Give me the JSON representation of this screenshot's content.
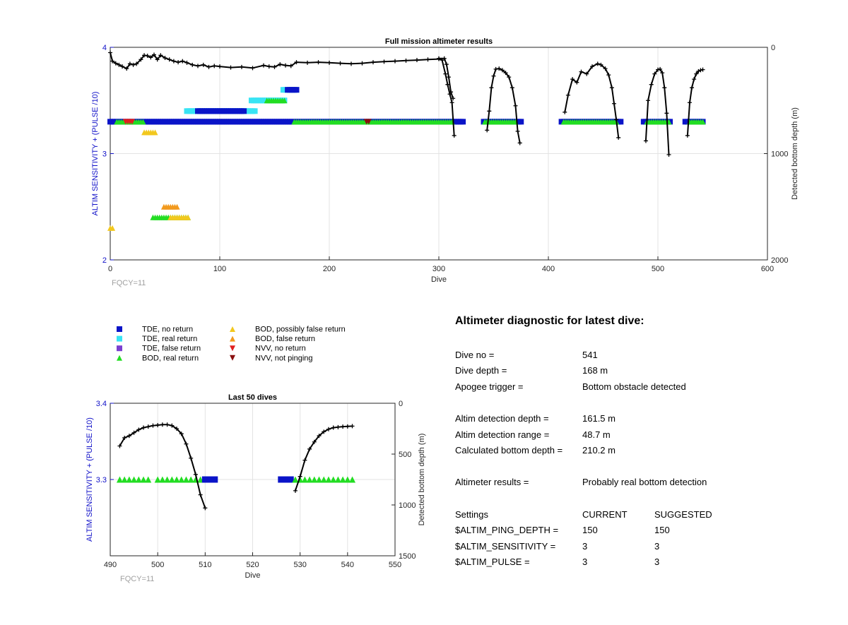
{
  "colors": {
    "tde_no_return": "#0a14c8",
    "tde_real_return": "#38e4f4",
    "tde_false_return": "#7a3fd0",
    "bod_real_return": "#22dd22",
    "bod_possibly_false": "#f2c81e",
    "bod_false": "#f29a1e",
    "nvv_no_return": "#e02020",
    "nvv_not_pinging": "#8a1010",
    "axis_left": "#1010c8",
    "depth_line": "#000000",
    "fqcy": "#a0a0a0"
  },
  "legend": [
    {
      "label": "TDE, no return",
      "marker": "square",
      "color_key": "tde_no_return"
    },
    {
      "label": "TDE, real return",
      "marker": "square",
      "color_key": "tde_real_return"
    },
    {
      "label": "TDE, false return",
      "marker": "square",
      "color_key": "tde_false_return"
    },
    {
      "label": "BOD, real return",
      "marker": "triangle-up",
      "color_key": "bod_real_return"
    },
    {
      "label": "BOD, possibly false return",
      "marker": "triangle-up",
      "color_key": "bod_possibly_false"
    },
    {
      "label": "BOD, false return",
      "marker": "triangle-up",
      "color_key": "bod_false"
    },
    {
      "label": "NVV, no return",
      "marker": "triangle-down",
      "color_key": "nvv_no_return"
    },
    {
      "label": "NVV, not pinging",
      "marker": "triangle-down",
      "color_key": "nvv_not_pinging"
    }
  ],
  "chart_data": [
    {
      "type": "scatter",
      "title": "Full mission altimeter results",
      "xlabel": "Dive",
      "ylabel": "ALTIM SENSITIVITY + (PULSE /10)",
      "y2label": "Detected bottom depth (m)",
      "xlim": [
        0,
        600
      ],
      "ylim": [
        2,
        4
      ],
      "y2lim": [
        0,
        2000
      ],
      "y2_reversed": true,
      "xticks": [
        "0",
        "100",
        "200",
        "300",
        "400",
        "500",
        "600"
      ],
      "yticks": [
        "2",
        "3",
        "4"
      ],
      "y2ticks": [
        "0",
        "1000",
        "2000"
      ],
      "grid": true,
      "annotation": "FQCY=11",
      "marker_runs": [
        {
          "class": "tde_no_return",
          "y": 3.3,
          "x_from": 0,
          "x_to": 322
        },
        {
          "class": "bod_real_return",
          "y": 3.3,
          "x_from": 6,
          "x_to": 31
        },
        {
          "class": "nvv_no_return",
          "y": 3.3,
          "x_from": 14,
          "x_to": 20
        },
        {
          "class": "bod_possibly_false",
          "y": 3.2,
          "x_from": 31,
          "x_to": 41
        },
        {
          "class": "tde_real_return",
          "y": 3.4,
          "x_from": 70,
          "x_to": 132
        },
        {
          "class": "tde_no_return",
          "y": 3.4,
          "x_from": 80,
          "x_to": 122
        },
        {
          "class": "tde_real_return",
          "y": 3.5,
          "x_from": 129,
          "x_to": 160
        },
        {
          "class": "bod_real_return",
          "y": 3.5,
          "x_from": 143,
          "x_to": 160
        },
        {
          "class": "tde_real_return",
          "y": 3.6,
          "x_from": 158,
          "x_to": 171
        },
        {
          "class": "tde_no_return",
          "y": 3.6,
          "x_from": 162,
          "x_to": 171
        },
        {
          "class": "bod_real_return",
          "y": 3.3,
          "x_from": 168,
          "x_to": 313
        },
        {
          "class": "nvv_not_pinging",
          "y": 3.3,
          "x_from": 234,
          "x_to": 236
        },
        {
          "class": "tde_no_return",
          "y": 3.3,
          "x_from": 341,
          "x_to": 375
        },
        {
          "class": "bod_real_return",
          "y": 3.3,
          "x_from": 342,
          "x_to": 371
        },
        {
          "class": "tde_no_return",
          "y": 3.3,
          "x_from": 412,
          "x_to": 466
        },
        {
          "class": "bod_real_return",
          "y": 3.3,
          "x_from": 414,
          "x_to": 462
        },
        {
          "class": "tde_no_return",
          "y": 3.3,
          "x_from": 487,
          "x_to": 512
        },
        {
          "class": "bod_real_return",
          "y": 3.3,
          "x_from": 490,
          "x_to": 510
        },
        {
          "class": "tde_no_return",
          "y": 3.3,
          "x_from": 525,
          "x_to": 541
        },
        {
          "class": "bod_real_return",
          "y": 3.3,
          "x_from": 529,
          "x_to": 541
        },
        {
          "class": "bod_real_return",
          "y": 2.4,
          "x_from": 39,
          "x_to": 71
        },
        {
          "class": "bod_possibly_false",
          "y": 2.4,
          "x_from": 55,
          "x_to": 72
        },
        {
          "class": "bod_false",
          "y": 2.5,
          "x_from": 49,
          "x_to": 61
        },
        {
          "class": "bod_possibly_false",
          "y": 2.3,
          "x_from": 0,
          "x_to": 3
        }
      ],
      "depth_segments": [
        {
          "x": [
            0,
            2,
            5,
            8,
            11,
            15,
            18,
            21,
            24,
            28,
            31,
            34,
            37,
            40,
            43,
            46,
            50,
            54,
            58,
            62,
            66,
            70,
            75,
            80,
            85,
            90,
            95,
            100,
            110,
            120,
            130,
            140,
            145,
            150,
            155,
            160,
            165,
            170,
            180,
            190,
            200,
            210,
            220,
            230,
            240,
            250,
            260,
            270,
            280,
            290,
            300,
            303,
            306,
            308,
            310,
            312,
            314
          ],
          "y": [
            50,
            130,
            150,
            165,
            180,
            200,
            155,
            165,
            155,
            115,
            75,
            80,
            95,
            70,
            115,
            75,
            100,
            115,
            130,
            140,
            130,
            145,
            165,
            175,
            165,
            185,
            175,
            180,
            190,
            185,
            195,
            170,
            180,
            185,
            160,
            170,
            175,
            140,
            145,
            140,
            145,
            150,
            155,
            150,
            140,
            135,
            130,
            125,
            120,
            115,
            110,
            120,
            250,
            350,
            440,
            520,
            830
          ]
        },
        {
          "x": [
            300,
            305,
            307,
            309,
            311,
            313
          ],
          "y": [
            105,
            105,
            160,
            280,
            420,
            480
          ]
        },
        {
          "x": [
            344,
            346,
            348,
            350,
            352,
            355,
            358,
            361,
            364,
            367,
            370,
            372,
            374
          ],
          "y": [
            780,
            600,
            380,
            270,
            205,
            200,
            215,
            240,
            280,
            380,
            550,
            790,
            900
          ]
        },
        {
          "x": [
            415,
            418,
            422,
            426,
            430,
            435,
            440,
            445,
            448,
            452,
            455,
            458,
            460,
            462,
            464
          ],
          "y": [
            610,
            450,
            300,
            330,
            230,
            250,
            180,
            155,
            165,
            200,
            260,
            380,
            530,
            680,
            850
          ]
        },
        {
          "x": [
            489,
            491,
            494,
            497,
            500,
            502,
            504,
            506,
            508,
            510
          ],
          "y": [
            880,
            500,
            350,
            250,
            210,
            205,
            240,
            380,
            620,
            1010
          ]
        },
        {
          "x": [
            527,
            529,
            531,
            533,
            535,
            537,
            539,
            541
          ],
          "y": [
            830,
            520,
            380,
            300,
            250,
            225,
            215,
            210
          ]
        }
      ]
    },
    {
      "type": "scatter",
      "title": "Last 50 dives",
      "xlabel": "Dive",
      "ylabel": "ALTIM SENSITIVITY + (PULSE /10)",
      "y2label": "Detected bottom depth (m)",
      "xlim": [
        490,
        550
      ],
      "ylim": [
        3.2,
        3.4
      ],
      "y2lim": [
        0,
        1500
      ],
      "y2_reversed": true,
      "xticks": [
        "490",
        "500",
        "510",
        "520",
        "530",
        "540",
        "550"
      ],
      "yticks": [
        "3.3",
        "3.4"
      ],
      "y2ticks": [
        "0",
        "500",
        "1000",
        "1500"
      ],
      "grid": true,
      "annotation": "FQCY=11",
      "markers": [
        {
          "class": "bod_real_return",
          "y": 3.3,
          "x": [
            492,
            493,
            494,
            495,
            496,
            497,
            498,
            500,
            501,
            502,
            503,
            504,
            505,
            506,
            507,
            508,
            509,
            510
          ]
        },
        {
          "class": "tde_no_return",
          "y": 3.3,
          "x": [
            510,
            511,
            512,
            526,
            527,
            528
          ]
        },
        {
          "class": "bod_real_return",
          "y": 3.3,
          "x": [
            529,
            530,
            531,
            532,
            533,
            534,
            535,
            536,
            537,
            538,
            539,
            540,
            541
          ]
        }
      ],
      "depth_segments": [
        {
          "x": [
            492,
            493,
            494,
            495,
            496,
            497,
            498,
            499,
            500,
            501,
            502,
            503,
            504,
            505,
            506,
            507,
            508,
            509,
            510
          ],
          "y": [
            420,
            340,
            320,
            290,
            260,
            240,
            230,
            220,
            215,
            210,
            210,
            220,
            250,
            300,
            400,
            540,
            700,
            900,
            1030
          ]
        },
        {
          "x": [
            529,
            530,
            531,
            532,
            533,
            534,
            535,
            536,
            537,
            538,
            539,
            540,
            541
          ],
          "y": [
            860,
            720,
            560,
            450,
            380,
            320,
            280,
            255,
            240,
            235,
            230,
            228,
            225
          ]
        }
      ]
    }
  ],
  "diagnostic": {
    "title": "Altimeter diagnostic for latest dive:",
    "rows": [
      {
        "label": "Dive no =",
        "value": "541"
      },
      {
        "label": "Dive depth =",
        "value": "168 m"
      },
      {
        "label": "Apogee trigger =",
        "value": "Bottom obstacle detected"
      },
      {
        "label": "Altim detection depth =",
        "value": "161.5 m"
      },
      {
        "label": "Altim detection range =",
        "value": "48.7 m"
      },
      {
        "label": "Calculated bottom depth =",
        "value": "210.2 m"
      },
      {
        "label": "Altimeter results =",
        "value": "Probably real bottom detection"
      }
    ],
    "settings_header": {
      "label": "Settings",
      "current": "CURRENT",
      "suggested": "SUGGESTED"
    },
    "settings": [
      {
        "label": "$ALTIM_PING_DEPTH =",
        "current": "150",
        "suggested": "150"
      },
      {
        "label": "$ALTIM_SENSITIVITY =",
        "current": "3",
        "suggested": "3"
      },
      {
        "label": "$ALTIM_PULSE =",
        "current": "3",
        "suggested": "3"
      }
    ]
  }
}
